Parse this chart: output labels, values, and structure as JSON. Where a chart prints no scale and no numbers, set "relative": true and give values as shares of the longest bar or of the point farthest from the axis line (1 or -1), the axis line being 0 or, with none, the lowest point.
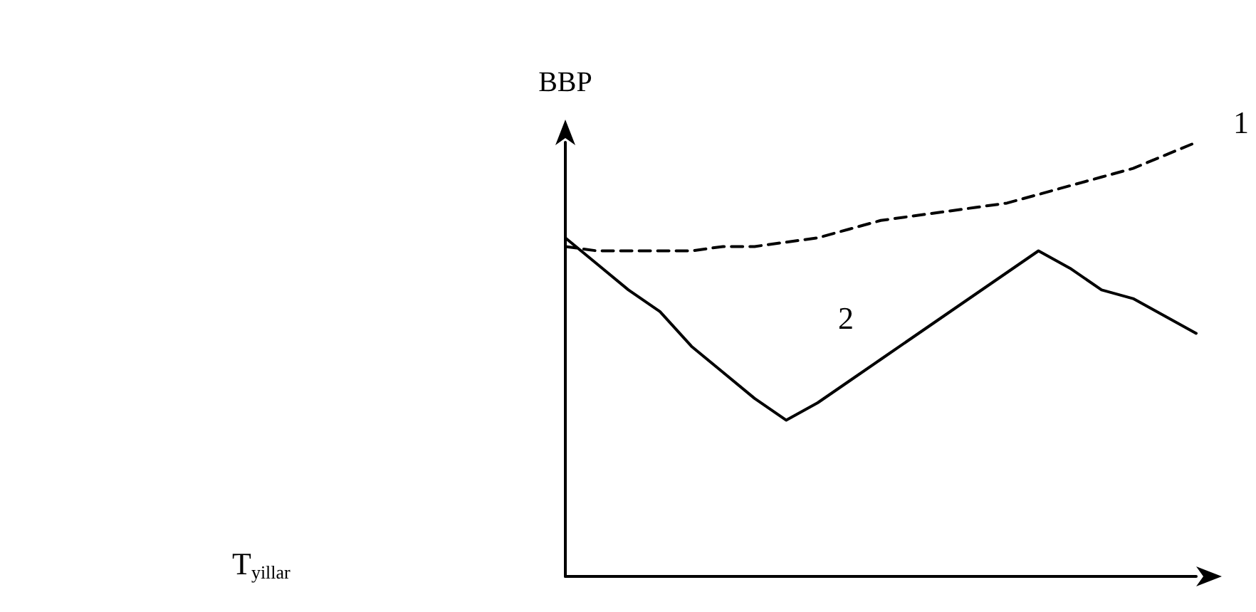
{
  "chart_data": {
    "type": "line",
    "relative": true,
    "ylabel": "BBP",
    "annotations": [
      "T$_{yillar}$"
    ],
    "legend": false,
    "grid": false,
    "marker": "none",
    "categories": [
      null,
      null,
      null,
      null,
      null,
      null,
      null,
      null,
      null,
      null,
      null,
      null,
      null,
      null,
      null,
      null,
      null,
      null,
      null,
      null,
      null
    ],
    "series": [
      {
        "name": "1",
        "color": "#000000",
        "line_style": "dashed",
        "values": [
          0.76,
          0.75,
          0.75,
          0.75,
          0.75,
          0.76,
          0.76,
          0.77,
          0.78,
          0.8,
          0.82,
          0.83,
          0.84,
          0.85,
          0.86,
          0.88,
          0.9,
          0.92,
          0.94,
          0.97,
          1
        ]
      },
      {
        "name": "2",
        "color": "#000000",
        "line_style": "solid",
        "values": [
          0.78,
          0.72,
          0.66,
          0.61,
          0.53,
          0.47,
          0.41,
          0.36,
          0.4,
          0.45,
          0.5,
          0.55,
          0.6,
          0.65,
          0.7,
          0.75,
          0.71,
          0.66,
          0.64,
          0.6,
          0.56
        ]
      }
    ]
  }
}
